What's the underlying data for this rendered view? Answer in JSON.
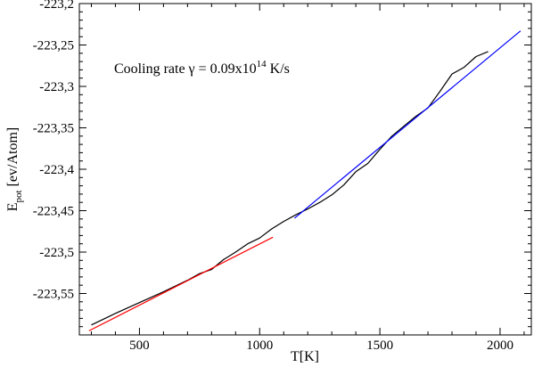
{
  "chart_data": {
    "type": "line",
    "xlabel": "T[K]",
    "ylabel": {
      "main": "E",
      "sub": "pot",
      "rest": " [ev/Atom]"
    },
    "xlim": [
      250,
      2130
    ],
    "ylim": [
      -223.6,
      -223.2
    ],
    "xticks": [
      500,
      1000,
      1500,
      2000
    ],
    "xtick_labels": [
      "500",
      "1000",
      "1500",
      "2000"
    ],
    "yticks": [
      -223.6,
      -223.55,
      -223.5,
      -223.45,
      -223.4,
      -223.35,
      -223.3,
      -223.25,
      -223.2
    ],
    "ytick_labels": [
      "",
      "-223,55",
      "-223,5",
      "-223,45",
      "-223,4",
      "-223,35",
      "-223,3",
      "-223,25",
      "-223,2"
    ],
    "annotation": {
      "prefix": "Cooling rate γ = 0.09x10",
      "exp": "14",
      "suffix": " K/s"
    },
    "grid": false,
    "series": [
      {
        "color": "#000000",
        "x": [
          300,
          400,
          500,
          600,
          650,
          700,
          750,
          800,
          850,
          900,
          950,
          1000,
          1050,
          1100,
          1150,
          1200,
          1250,
          1300,
          1350,
          1400,
          1450,
          1500,
          1550,
          1600,
          1650,
          1700,
          1750,
          1800,
          1850,
          1900,
          1950
        ],
        "y": [
          -223.588,
          -223.574,
          -223.561,
          -223.548,
          -223.541,
          -223.534,
          -223.526,
          -223.521,
          -223.509,
          -223.5,
          -223.49,
          -223.483,
          -223.472,
          -223.463,
          -223.455,
          -223.448,
          -223.44,
          -223.431,
          -223.419,
          -223.403,
          -223.393,
          -223.376,
          -223.36,
          -223.348,
          -223.336,
          -223.326,
          -223.306,
          -223.285,
          -223.277,
          -223.264,
          -223.258
        ]
      },
      {
        "color": "#ff0000",
        "x": [
          290,
          1055
        ],
        "y": [
          -223.595,
          -223.482
        ]
      },
      {
        "color": "#0000ff",
        "x": [
          1145,
          2085
        ],
        "y": [
          -223.459,
          -223.233
        ]
      }
    ]
  }
}
